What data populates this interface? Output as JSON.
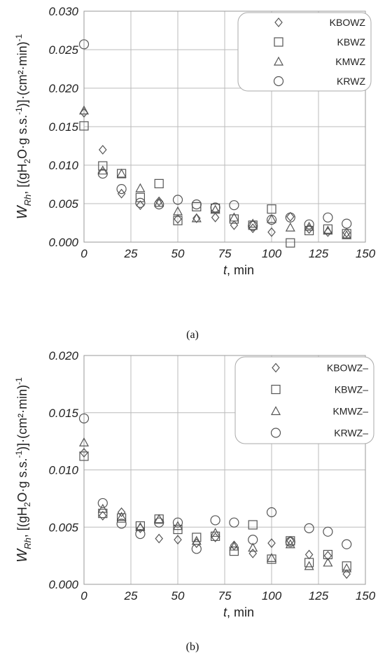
{
  "captions": {
    "a": "(a)",
    "b": "(b)"
  },
  "chart_data": [
    {
      "panel": "a",
      "type": "scatter",
      "xlabel": "t, min",
      "ylabel": "W_Rh, [(gH2O·g s.s.^-1)]·(cm²·min)^-1",
      "xlim": [
        0,
        150
      ],
      "ylim": [
        0,
        0.03
      ],
      "xticks": [
        "0",
        "25",
        "50",
        "75",
        "100",
        "125",
        "150"
      ],
      "xtick_values": [
        0,
        25,
        50,
        75,
        100,
        125,
        150
      ],
      "yticks": [
        "0.000",
        "0.005",
        "0.010",
        "0.015",
        "0.020",
        "0.025",
        "0.030"
      ],
      "ytick_values": [
        0,
        0.005,
        0.01,
        0.015,
        0.02,
        0.025,
        0.03
      ],
      "grid": true,
      "legend_position": "top-right",
      "x": [
        0,
        10,
        20,
        30,
        40,
        50,
        60,
        70,
        80,
        90,
        100,
        110,
        120,
        130,
        140
      ],
      "series": [
        {
          "name": "KBOWZ",
          "marker": "diamond",
          "values": [
            0.0168,
            0.012,
            0.0063,
            0.0048,
            0.0053,
            0.003,
            0.0031,
            0.0032,
            0.0022,
            0.0018,
            0.0013,
            0.0033,
            0.0017,
            0.0013,
            0.0012
          ]
        },
        {
          "name": "KBWZ",
          "marker": "square",
          "values": [
            0.0151,
            0.0099,
            0.0089,
            0.0058,
            0.0076,
            0.0028,
            0.0046,
            0.0044,
            0.003,
            0.0022,
            0.0043,
            -0.0001,
            0.0015,
            0.0017,
            0.0011
          ]
        },
        {
          "name": "KMWZ",
          "marker": "triangle",
          "values": [
            0.0171,
            0.0093,
            0.0089,
            0.007,
            0.0051,
            0.004,
            0.0031,
            0.0042,
            0.0032,
            0.0024,
            0.003,
            0.0019,
            0.002,
            0.0015,
            0.0009
          ]
        },
        {
          "name": "KRWZ",
          "marker": "circle",
          "values": [
            0.0257,
            0.0089,
            0.0069,
            0.0051,
            0.0049,
            0.0055,
            0.0049,
            0.0045,
            0.0048,
            0.0021,
            0.0029,
            0.0032,
            0.0023,
            0.0032,
            0.0024
          ]
        }
      ]
    },
    {
      "panel": "b",
      "type": "scatter",
      "xlabel": "t, min",
      "ylabel": "W_Rh, [(gH2O·g s.s.^-1)]·(cm²·min)^-1",
      "xlim": [
        0,
        150
      ],
      "ylim": [
        0,
        0.02
      ],
      "xticks": [
        "0",
        "25",
        "50",
        "75",
        "100",
        "125",
        "150"
      ],
      "xtick_values": [
        0,
        25,
        50,
        75,
        100,
        125,
        150
      ],
      "yticks": [
        "0.000",
        "0.005",
        "0.010",
        "0.015",
        "0.020"
      ],
      "ytick_values": [
        0,
        0.005,
        0.01,
        0.015,
        0.02
      ],
      "grid": true,
      "legend_position": "top-right",
      "x": [
        0,
        10,
        20,
        30,
        40,
        50,
        60,
        70,
        80,
        90,
        100,
        110,
        120,
        130,
        140
      ],
      "series": [
        {
          "name": "KBOWZ–",
          "marker": "diamond",
          "values": [
            0.0115,
            0.006,
            0.0063,
            0.0049,
            0.004,
            0.0039,
            0.0036,
            0.0041,
            0.0034,
            0.0027,
            0.0036,
            0.0038,
            0.0026,
            0.0025,
            0.0009
          ]
        },
        {
          "name": "KBWZ–",
          "marker": "square",
          "values": [
            0.0112,
            0.0062,
            0.0058,
            0.0051,
            0.0057,
            0.0048,
            0.0041,
            0.0042,
            0.0029,
            0.0052,
            0.0022,
            0.0038,
            0.0019,
            0.0026,
            0.0016
          ]
        },
        {
          "name": "KMWZ–",
          "marker": "triangle",
          "values": [
            0.0124,
            0.0066,
            0.0059,
            0.005,
            0.0057,
            0.0051,
            0.0038,
            0.0045,
            0.0033,
            0.0032,
            0.0023,
            0.0035,
            0.0016,
            0.0019,
            0.0014
          ]
        },
        {
          "name": "KRWZ–",
          "marker": "circle",
          "values": [
            0.0145,
            0.0071,
            0.0053,
            0.0044,
            0.0054,
            0.0054,
            0.0031,
            0.0056,
            0.0054,
            0.0039,
            0.0063,
            0.0037,
            0.0049,
            0.0046,
            0.0035
          ]
        }
      ]
    }
  ]
}
